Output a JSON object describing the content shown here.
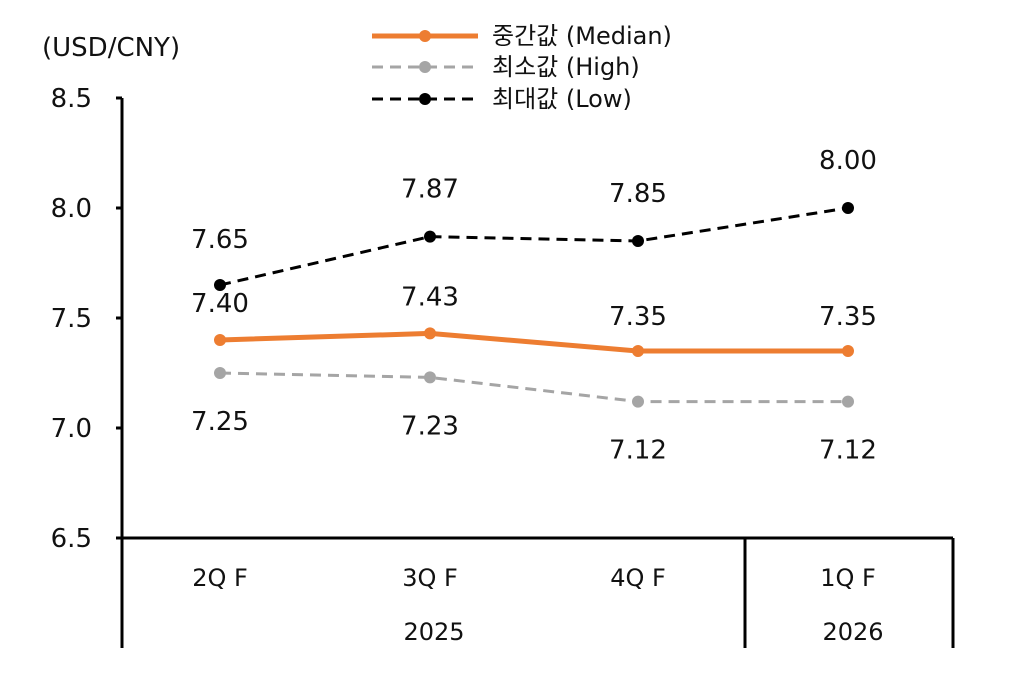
{
  "chart_data": {
    "type": "line",
    "ylabel": "(USD/CNY)",
    "ylim": [
      6.5,
      8.5
    ],
    "yticks": [
      "6.5",
      "7.0",
      "7.5",
      "8.0",
      "8.5"
    ],
    "categories": [
      "2Q F",
      "3Q F",
      "4Q F",
      "1Q F"
    ],
    "year_groups": [
      {
        "label": "2025",
        "categories": [
          "2Q F",
          "3Q F",
          "4Q F"
        ]
      },
      {
        "label": "2026",
        "categories": [
          "1Q F"
        ]
      }
    ],
    "grid": false,
    "legend_position": "top-center",
    "series": [
      {
        "name": "중간값 (Median)",
        "values": [
          7.4,
          7.43,
          7.35,
          7.35
        ],
        "labels": [
          "7.40",
          "7.43",
          "7.35",
          "7.35"
        ],
        "color": "#ed7d31",
        "style": "solid"
      },
      {
        "name": "최소값 (High)",
        "values": [
          7.25,
          7.23,
          7.12,
          7.12
        ],
        "labels": [
          "7.25",
          "7.23",
          "7.12",
          "7.12"
        ],
        "color": "#a5a5a5",
        "style": "dashed"
      },
      {
        "name": "최대값 (Low)",
        "values": [
          7.65,
          7.87,
          7.85,
          8.0
        ],
        "labels": [
          "7.65",
          "7.87",
          "7.85",
          "8.00"
        ],
        "color": "#000000",
        "style": "dashed"
      }
    ]
  }
}
